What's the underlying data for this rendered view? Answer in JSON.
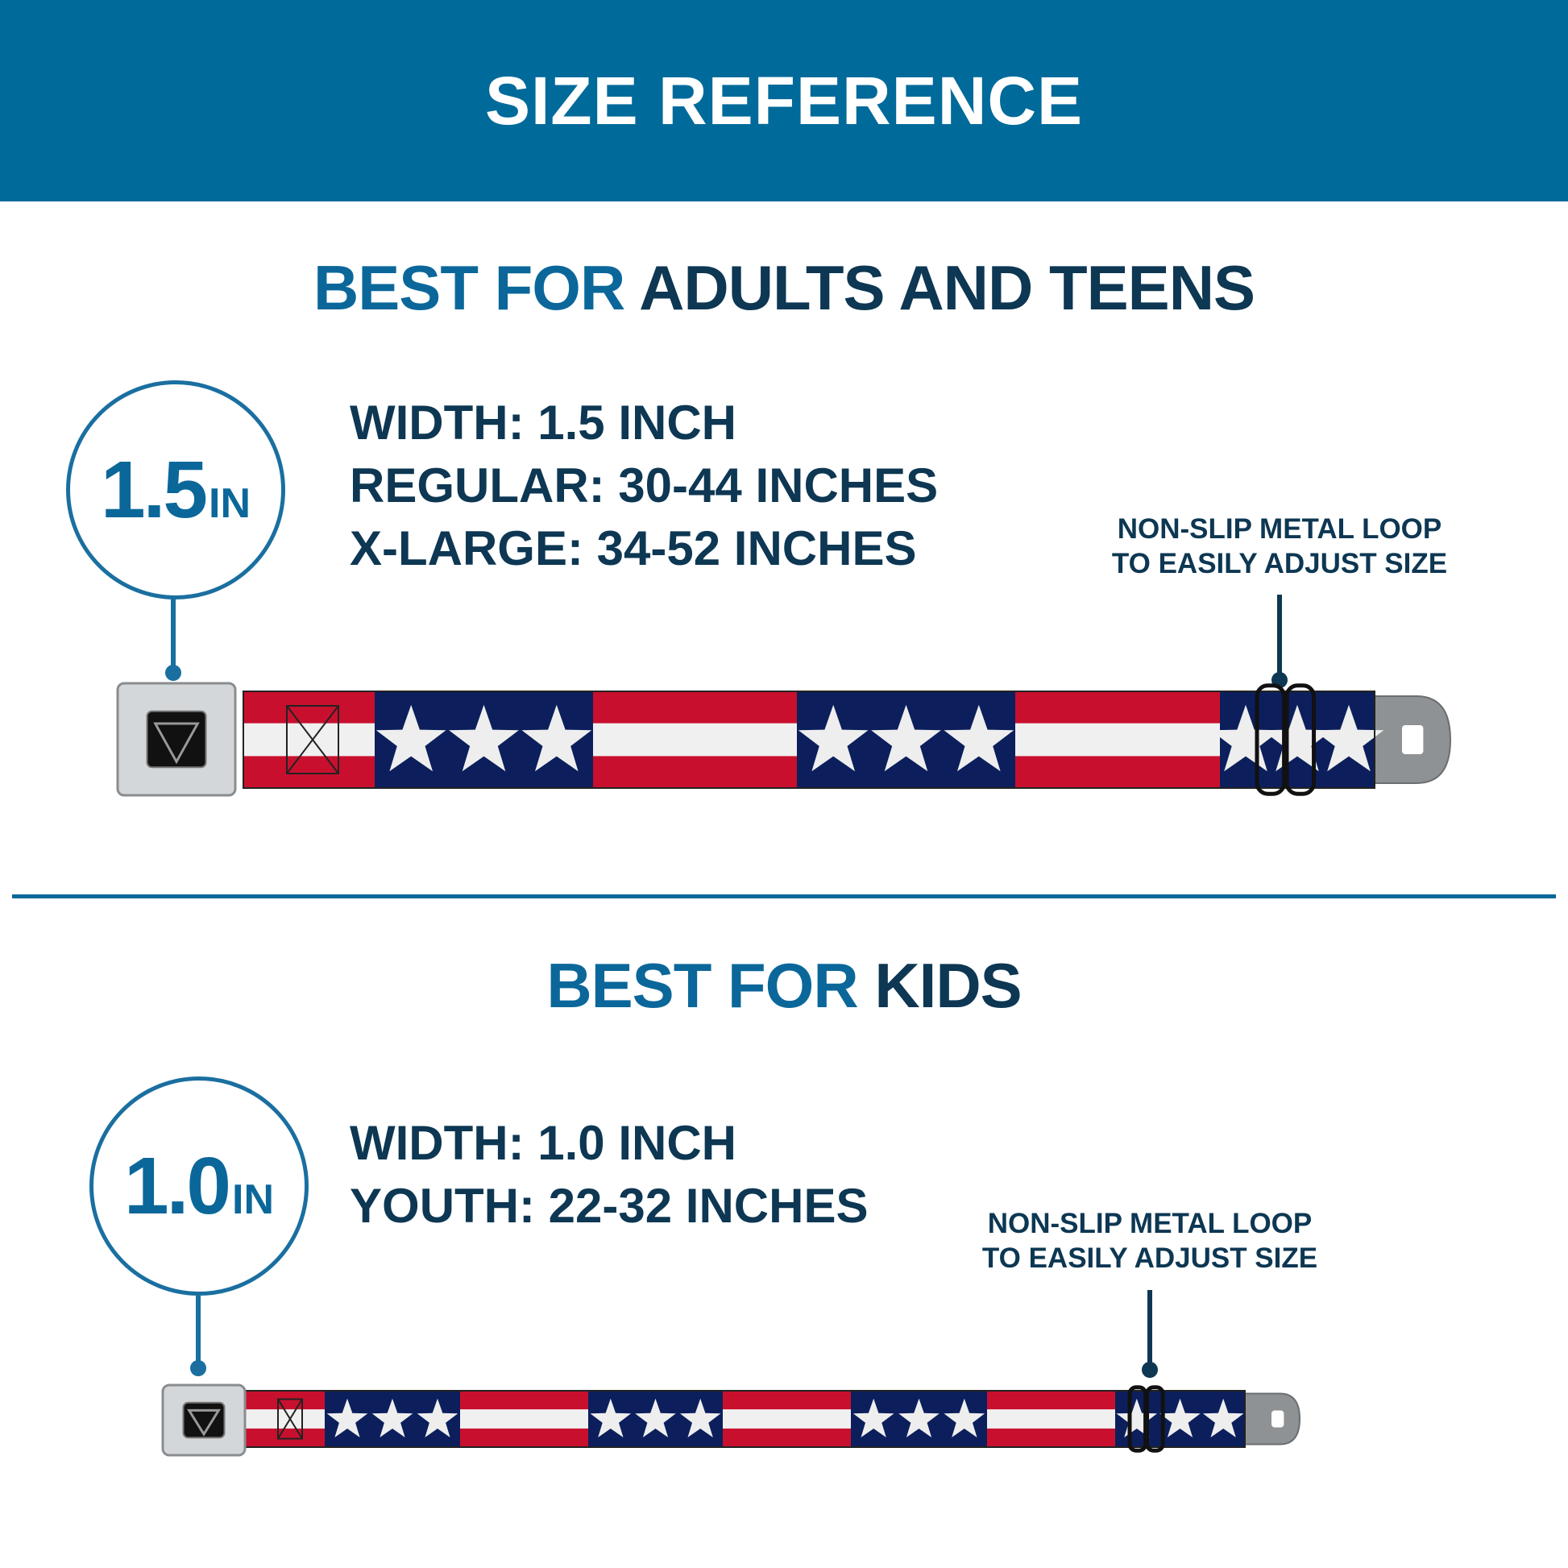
{
  "header": {
    "title": "SIZE REFERENCE"
  },
  "colors": {
    "header_bg": "#006a9a",
    "accent_blue": "#0b679a",
    "dark_navy": "#0d3753",
    "belt_red": "#c8102e",
    "belt_navy": "#0c1f5c",
    "belt_white": "#f0f0f0"
  },
  "adults": {
    "heading_prefix": "BEST FOR",
    "heading_main": "ADULTS AND TEENS",
    "badge_value": "1.5",
    "badge_unit": "IN",
    "specs": [
      "WIDTH: 1.5 INCH",
      "REGULAR: 30-44 INCHES",
      "X-LARGE: 34-52 INCHES"
    ],
    "note": [
      "NON-SLIP METAL LOOP",
      "TO EASILY ADJUST SIZE"
    ]
  },
  "kids": {
    "heading_prefix": "BEST FOR",
    "heading_main": "KIDS",
    "badge_value": "1.0",
    "badge_unit": "IN",
    "specs": [
      "WIDTH: 1.0 INCH",
      "YOUTH: 22-32 INCHES"
    ],
    "note": [
      "NON-SLIP METAL LOOP",
      "TO EASILY ADJUST SIZE"
    ]
  },
  "icons": {
    "buckle": "seatbelt-buckle-icon",
    "loop": "metal-loop-icon",
    "tab": "metal-tab-icon"
  }
}
